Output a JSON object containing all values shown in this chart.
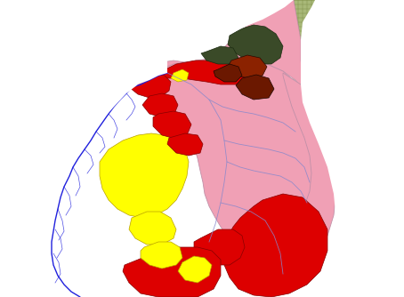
{
  "background_color": "#ffffff",
  "figsize": [
    4.54,
    3.34
  ],
  "dpi": 100,
  "colors": {
    "red": "#dd0000",
    "pink": "#f0a0b5",
    "yellow": "#ffff00",
    "blue": "#2020dd",
    "dark_olive": "#3a4a28",
    "green_hatch_bg": "#a8b878",
    "green_hatch_line": "#788840",
    "yellow_green": "#c8e020",
    "yellow_green_line": "#909820",
    "dark_brown": "#6b1800",
    "medium_brown": "#8b2200",
    "white": "#ffffff",
    "border_pink": "#c090a8"
  }
}
